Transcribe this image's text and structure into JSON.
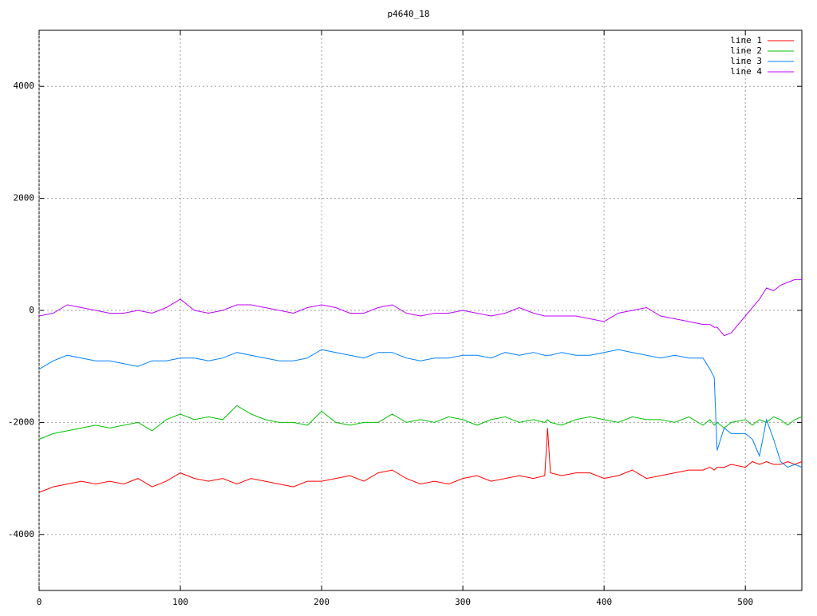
{
  "chart_data": {
    "type": "line",
    "title": "p4640_18",
    "x": [
      0,
      10,
      20,
      30,
      40,
      50,
      60,
      70,
      80,
      90,
      100,
      110,
      120,
      130,
      140,
      150,
      160,
      170,
      180,
      190,
      200,
      210,
      220,
      230,
      240,
      250,
      260,
      270,
      280,
      290,
      300,
      310,
      320,
      330,
      340,
      350,
      358,
      360,
      362,
      370,
      380,
      390,
      400,
      410,
      420,
      430,
      440,
      450,
      460,
      470,
      475,
      478,
      480,
      485,
      490,
      500,
      505,
      510,
      515,
      520,
      525,
      530,
      535,
      540
    ],
    "series": [
      {
        "name": "line 1",
        "color": "#ff0000",
        "values": [
          -3250,
          -3150,
          -3100,
          -3050,
          -3100,
          -3050,
          -3100,
          -3000,
          -3150,
          -3050,
          -2900,
          -3000,
          -3050,
          -3000,
          -3100,
          -3000,
          -3050,
          -3100,
          -3150,
          -3050,
          -3050,
          -3000,
          -2950,
          -3050,
          -2900,
          -2850,
          -3000,
          -3100,
          -3050,
          -3100,
          -3000,
          -2950,
          -3050,
          -3000,
          -2950,
          -3000,
          -2950,
          -2100,
          -2900,
          -2950,
          -2900,
          -2900,
          -3000,
          -2950,
          -2850,
          -3000,
          -2950,
          -2900,
          -2850,
          -2850,
          -2800,
          -2850,
          -2800,
          -2800,
          -2750,
          -2800,
          -2700,
          -2750,
          -2700,
          -2750,
          -2750,
          -2700,
          -2750,
          -2700
        ]
      },
      {
        "name": "line 2",
        "color": "#00c000",
        "values": [
          -2300,
          -2200,
          -2150,
          -2100,
          -2050,
          -2100,
          -2050,
          -2000,
          -2150,
          -1950,
          -1850,
          -1950,
          -1900,
          -1950,
          -1700,
          -1850,
          -1950,
          -2000,
          -2000,
          -2050,
          -1800,
          -2000,
          -2050,
          -2000,
          -2000,
          -1850,
          -2000,
          -1950,
          -2000,
          -1900,
          -1950,
          -2050,
          -1950,
          -1900,
          -2000,
          -1950,
          -2000,
          -1950,
          -2000,
          -2050,
          -1950,
          -1900,
          -1950,
          -2000,
          -1900,
          -1950,
          -1950,
          -2000,
          -1900,
          -2050,
          -1950,
          -2050,
          -2000,
          -2100,
          -2000,
          -1950,
          -2050,
          -1950,
          -2000,
          -1900,
          -1950,
          -2050,
          -1950,
          -1900
        ]
      },
      {
        "name": "line 3",
        "color": "#0080ff",
        "values": [
          -1050,
          -900,
          -800,
          -850,
          -900,
          -900,
          -950,
          -1000,
          -900,
          -900,
          -850,
          -850,
          -900,
          -850,
          -750,
          -800,
          -850,
          -900,
          -900,
          -850,
          -700,
          -750,
          -800,
          -850,
          -750,
          -750,
          -850,
          -900,
          -850,
          -850,
          -800,
          -800,
          -850,
          -750,
          -800,
          -750,
          -800,
          -800,
          -800,
          -750,
          -800,
          -800,
          -750,
          -700,
          -750,
          -800,
          -850,
          -800,
          -850,
          -850,
          -1050,
          -1200,
          -2500,
          -2100,
          -2200,
          -2200,
          -2300,
          -2600,
          -1950,
          -2300,
          -2700,
          -2800,
          -2750,
          -2800
        ]
      },
      {
        "name": "line 4",
        "color": "#c000ff",
        "values": [
          -100,
          -50,
          100,
          50,
          0,
          -50,
          -50,
          0,
          -50,
          50,
          200,
          0,
          -50,
          0,
          100,
          100,
          50,
          0,
          -50,
          50,
          100,
          50,
          -50,
          -50,
          50,
          100,
          -50,
          -100,
          -50,
          -50,
          0,
          -50,
          -100,
          -50,
          50,
          -50,
          -100,
          -100,
          -100,
          -100,
          -100,
          -150,
          -200,
          -50,
          0,
          50,
          -100,
          -150,
          -200,
          -250,
          -250,
          -300,
          -300,
          -450,
          -400,
          -100,
          50,
          200,
          400,
          350,
          450,
          500,
          550,
          550
        ]
      }
    ],
    "xlim": [
      0,
      540
    ],
    "xticks": [
      0,
      100,
      200,
      300,
      400,
      500
    ],
    "ylim": [
      -5000,
      5000
    ],
    "yticks": [
      -4000,
      -2000,
      0,
      2000,
      4000
    ],
    "grid": true,
    "legend": "top-right"
  }
}
